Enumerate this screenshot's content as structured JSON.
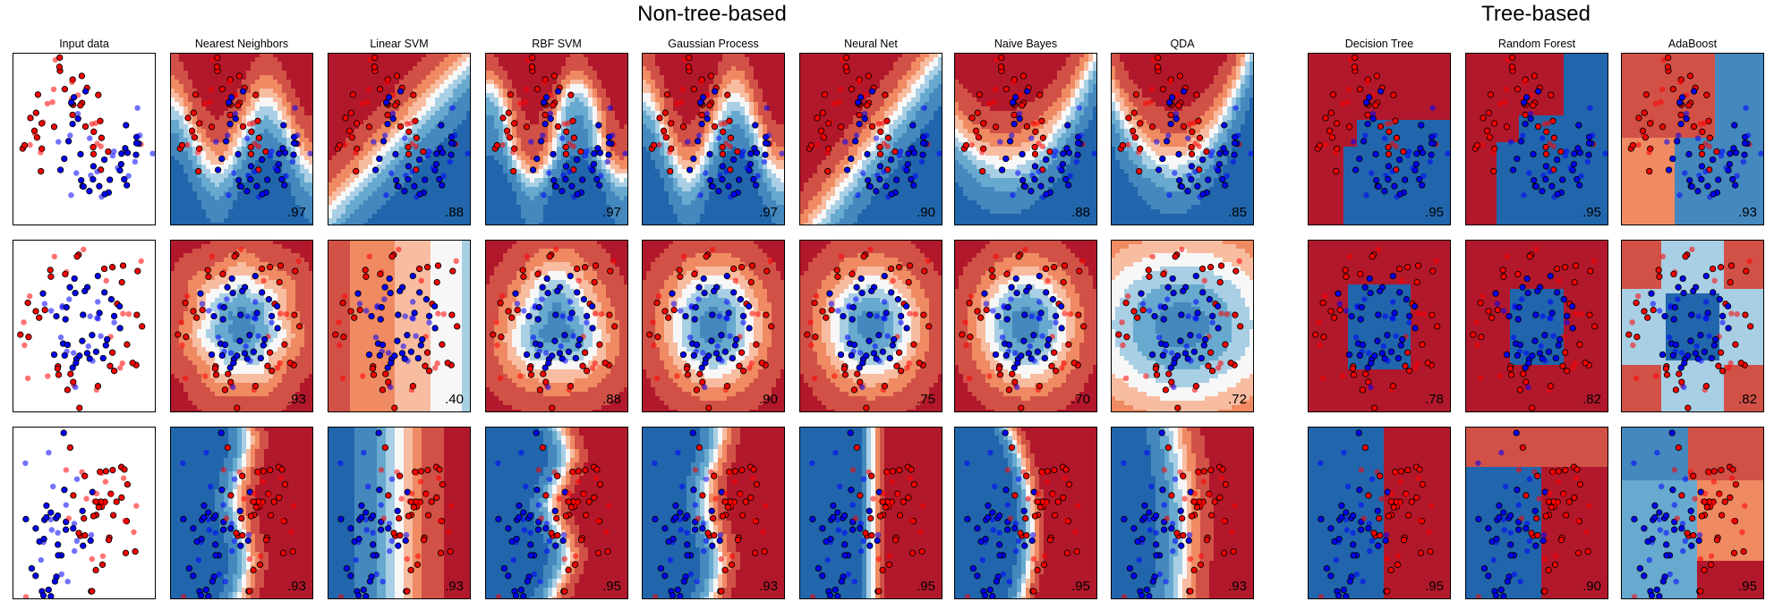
{
  "group_titles": {
    "non_tree": "Non-tree-based",
    "tree": "Tree-based"
  },
  "columns": [
    "Input data",
    "Nearest Neighbors",
    "Linear SVM",
    "RBF SVM",
    "Gaussian Process",
    "Neural Net",
    "Naive Bayes",
    "QDA",
    "Decision Tree",
    "Random Forest",
    "AdaBoost"
  ],
  "colors": {
    "class_red": "#ff0000",
    "class_blue": "#0000ff",
    "map_red": "#b2182b",
    "map_blue": "#2166ac",
    "point_edge": "#000000"
  },
  "chart_data": [
    {
      "type": "scatter",
      "name": "moons",
      "xlim": [
        -1.6,
        2.6
      ],
      "ylim": [
        -1.2,
        1.6
      ],
      "grid": false,
      "classifiers": [
        {
          "name": "Nearest Neighbors",
          "score": ".97",
          "boundary": "knn"
        },
        {
          "name": "Linear SVM",
          "score": ".88",
          "boundary": "linear"
        },
        {
          "name": "RBF SVM",
          "score": ".97",
          "boundary": "smooth"
        },
        {
          "name": "Gaussian Process",
          "score": ".97",
          "boundary": "smooth"
        },
        {
          "name": "Neural Net",
          "score": ".90",
          "boundary": "smooth"
        },
        {
          "name": "Naive Bayes",
          "score": ".88",
          "boundary": "smooth"
        },
        {
          "name": "QDA",
          "score": ".85",
          "boundary": "quadratic"
        },
        {
          "name": "Decision Tree",
          "score": ".95",
          "boundary": "axis-aligned"
        },
        {
          "name": "Random Forest",
          "score": ".95",
          "boundary": "axis-aligned"
        },
        {
          "name": "AdaBoost",
          "score": ".93",
          "boundary": "axis-aligned"
        }
      ]
    },
    {
      "type": "scatter",
      "name": "circles",
      "xlim": [
        -1.4,
        1.4
      ],
      "ylim": [
        -1.4,
        1.4
      ],
      "grid": false,
      "classifiers": [
        {
          "name": "Nearest Neighbors",
          "score": ".93",
          "boundary": "knn"
        },
        {
          "name": "Linear SVM",
          "score": ".40",
          "boundary": "linear"
        },
        {
          "name": "RBF SVM",
          "score": ".88",
          "boundary": "smooth"
        },
        {
          "name": "Gaussian Process",
          "score": ".90",
          "boundary": "smooth"
        },
        {
          "name": "Neural Net",
          "score": ".75",
          "boundary": "smooth"
        },
        {
          "name": "Naive Bayes",
          "score": ".70",
          "boundary": "smooth"
        },
        {
          "name": "QDA",
          "score": ".72",
          "boundary": "quadratic"
        },
        {
          "name": "Decision Tree",
          "score": ".78",
          "boundary": "axis-aligned"
        },
        {
          "name": "Random Forest",
          "score": ".82",
          "boundary": "axis-aligned"
        },
        {
          "name": "AdaBoost",
          "score": ".82",
          "boundary": "axis-aligned"
        }
      ]
    },
    {
      "type": "scatter",
      "name": "linearly-separable",
      "xlim": [
        -3.0,
        3.2
      ],
      "ylim": [
        -2.4,
        3.6
      ],
      "grid": false,
      "classifiers": [
        {
          "name": "Nearest Neighbors",
          "score": ".93",
          "boundary": "knn"
        },
        {
          "name": "Linear SVM",
          "score": ".93",
          "boundary": "linear"
        },
        {
          "name": "RBF SVM",
          "score": ".95",
          "boundary": "smooth"
        },
        {
          "name": "Gaussian Process",
          "score": ".93",
          "boundary": "smooth"
        },
        {
          "name": "Neural Net",
          "score": ".95",
          "boundary": "smooth"
        },
        {
          "name": "Naive Bayes",
          "score": ".95",
          "boundary": "smooth"
        },
        {
          "name": "QDA",
          "score": ".93",
          "boundary": "quadratic"
        },
        {
          "name": "Decision Tree",
          "score": ".95",
          "boundary": "axis-aligned"
        },
        {
          "name": "Random Forest",
          "score": ".90",
          "boundary": "axis-aligned"
        },
        {
          "name": "AdaBoost",
          "score": ".95",
          "boundary": "axis-aligned"
        }
      ]
    }
  ]
}
